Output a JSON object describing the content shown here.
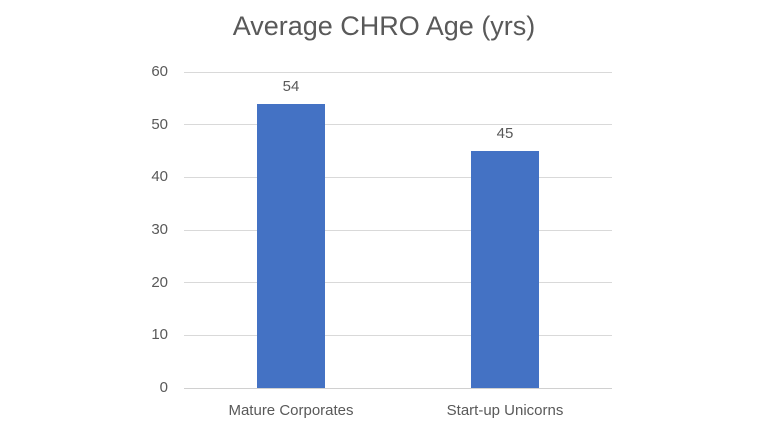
{
  "chart_data": {
    "type": "bar",
    "title": "Average CHRO Age (yrs)",
    "categories": [
      "Mature Corporates",
      "Start-up Unicorns"
    ],
    "values": [
      54,
      45
    ],
    "data_labels": [
      "54",
      "45"
    ],
    "xlabel": "",
    "ylabel": "",
    "ylim": [
      0,
      60
    ],
    "yticks": [
      0,
      10,
      20,
      30,
      40,
      50,
      60
    ],
    "grid": "horizontal",
    "legend": "none",
    "bar_color": "#4472c4",
    "text_color": "#595959",
    "gridline_color": "#d9d9d9",
    "background_color": "#ffffff"
  }
}
